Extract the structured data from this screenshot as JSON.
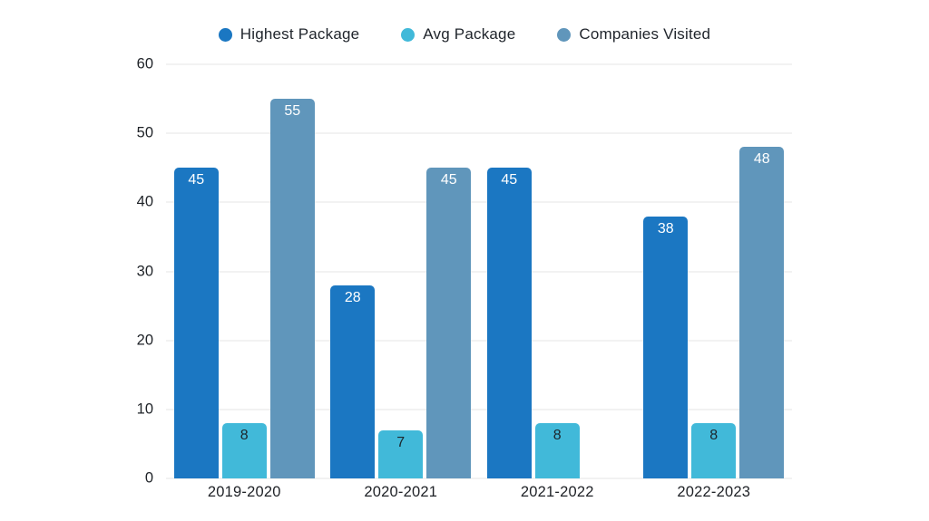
{
  "chart_data": {
    "type": "bar",
    "title": "",
    "categories": [
      "2019-2020",
      "2020-2021",
      "2021-2022",
      "2022-2023"
    ],
    "series": [
      {
        "name": "Highest Package",
        "color": "#1b77c2",
        "label_color": "#ffffff",
        "values": [
          45,
          28,
          45,
          38
        ]
      },
      {
        "name": "Avg Package",
        "color": "#41b9d9",
        "label_color": "#1c262c",
        "values": [
          8,
          7,
          8,
          8
        ]
      },
      {
        "name": "Companies Visited",
        "color": "#6096bb",
        "label_color": "#ffffff",
        "values": [
          55,
          45,
          null,
          48
        ]
      }
    ],
    "ylim": [
      0,
      60
    ],
    "yticks": [
      0,
      10,
      20,
      30,
      40,
      50,
      60
    ],
    "grid": true,
    "legend_position": "top"
  },
  "colors": {
    "background": "#ffffff",
    "gridline": "#e4e4e4",
    "axis_text": "#1f2328",
    "legend_text": "#1f242b"
  }
}
